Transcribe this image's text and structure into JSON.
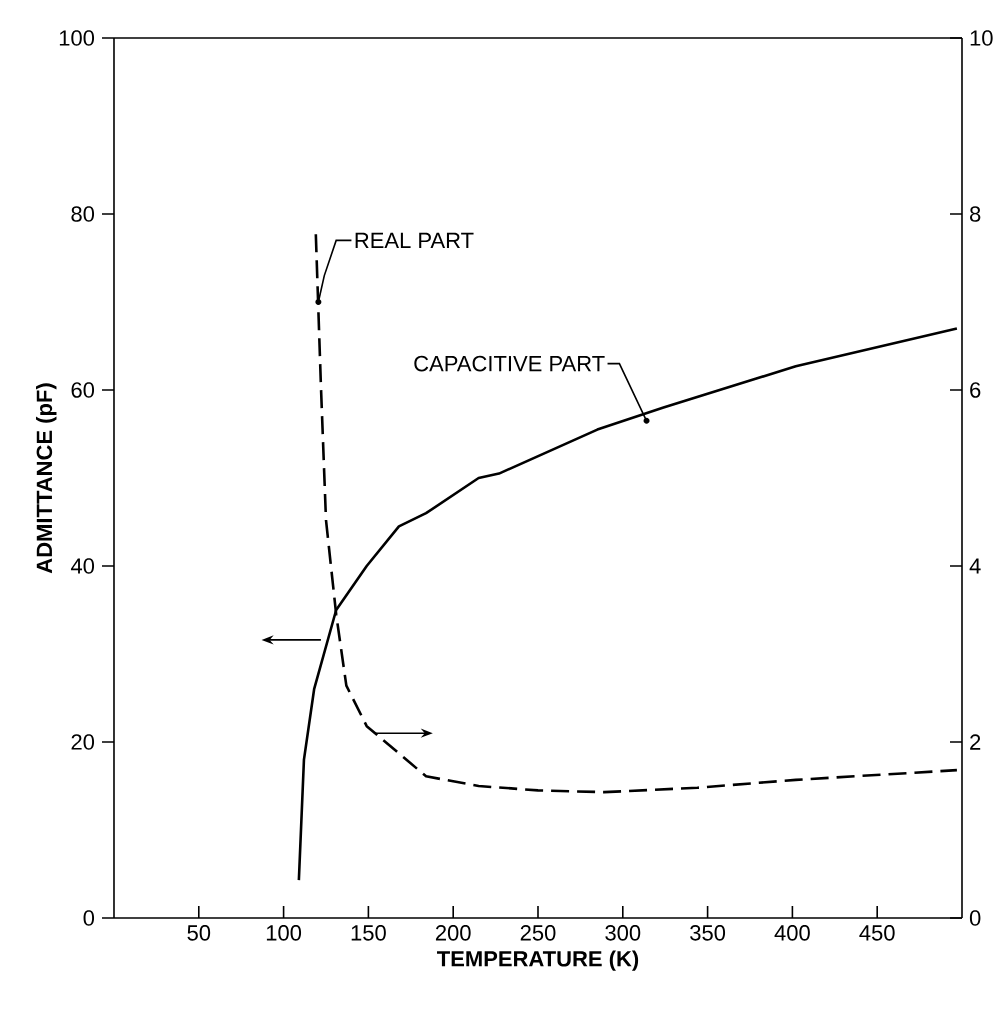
{
  "chart_data": {
    "type": "line",
    "xlabel": "TEMPERATURE (K)",
    "ylabel": "ADMITTANCE (pF)",
    "xlim": [
      0,
      500
    ],
    "xticks": [
      50,
      100,
      150,
      200,
      250,
      300,
      350,
      400,
      450
    ],
    "ylim": [
      0,
      100
    ],
    "yticks": [
      0,
      20,
      40,
      60,
      80,
      100
    ],
    "y2lim": [
      0,
      10
    ],
    "y2ticks": [
      0,
      2,
      4,
      6,
      8,
      10
    ],
    "series": [
      {
        "name": "REAL PART",
        "color": "#000000",
        "line_style": "dashed",
        "axis": "y2",
        "x": [
          119,
          122,
          125,
          131,
          137,
          149,
          184,
          215,
          250,
          289,
          344,
          402,
          497
        ],
        "values": [
          7.77,
          6.05,
          4.52,
          3.45,
          2.64,
          2.18,
          1.61,
          1.5,
          1.45,
          1.43,
          1.48,
          1.57,
          1.68
        ]
      },
      {
        "name": "CAPACITIVE PART",
        "color": "#000000",
        "line_style": "solid",
        "x": [
          109,
          112,
          118,
          131,
          149,
          168,
          184,
          215,
          227,
          285,
          324,
          402,
          497
        ],
        "values": [
          4.3,
          18,
          26,
          35,
          40,
          44.5,
          46,
          50,
          50.5,
          55.5,
          58,
          62.7,
          67
        ]
      }
    ]
  }
}
